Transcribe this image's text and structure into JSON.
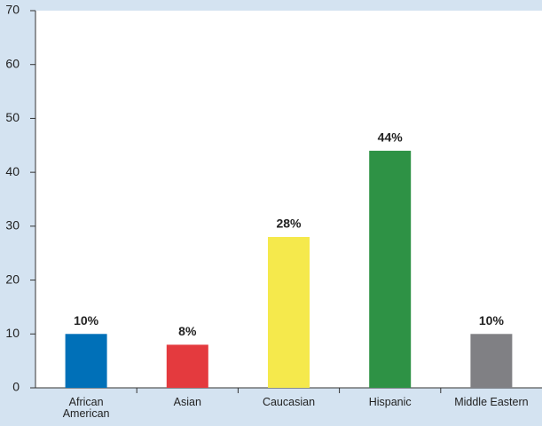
{
  "chart_data": {
    "type": "bar",
    "categories": [
      "African American",
      "Asian",
      "Caucasian",
      "Hispanic",
      "Middle Eastern"
    ],
    "values": [
      10,
      8,
      28,
      44,
      10
    ],
    "value_labels": [
      "10%",
      "8%",
      "28%",
      "44%",
      "10%"
    ],
    "colors": [
      "#0070b8",
      "#e43a3e",
      "#f5e94c",
      "#2e9245",
      "#808084"
    ],
    "ylim": [
      0,
      70
    ],
    "yticks": [
      0,
      10,
      20,
      30,
      40,
      50,
      60,
      70
    ],
    "grid": false
  }
}
